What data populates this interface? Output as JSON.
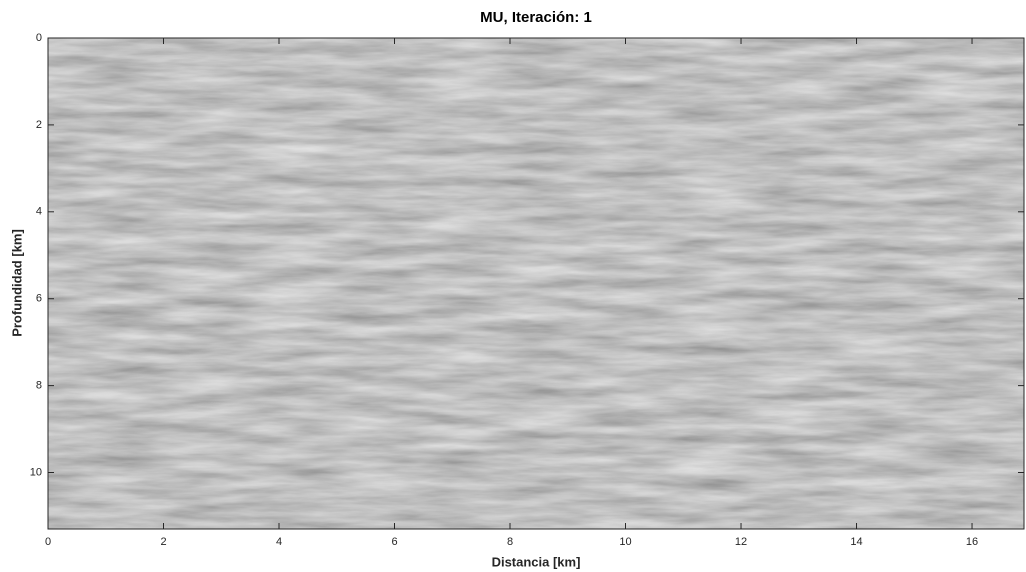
{
  "chart_data": {
    "type": "image",
    "title": "MU, Iteración: 1",
    "x_label": "Distancia [km]",
    "y_label": "Profundidad [km]",
    "xlim": [
      0,
      16.9
    ],
    "ylim": [
      0,
      11.3
    ],
    "y_direction": "reverse",
    "xticks": [
      0,
      2,
      4,
      6,
      8,
      10,
      12,
      14,
      16
    ],
    "yticks": [
      0,
      2,
      4,
      6,
      8,
      10
    ],
    "colormap": "gray"
  }
}
